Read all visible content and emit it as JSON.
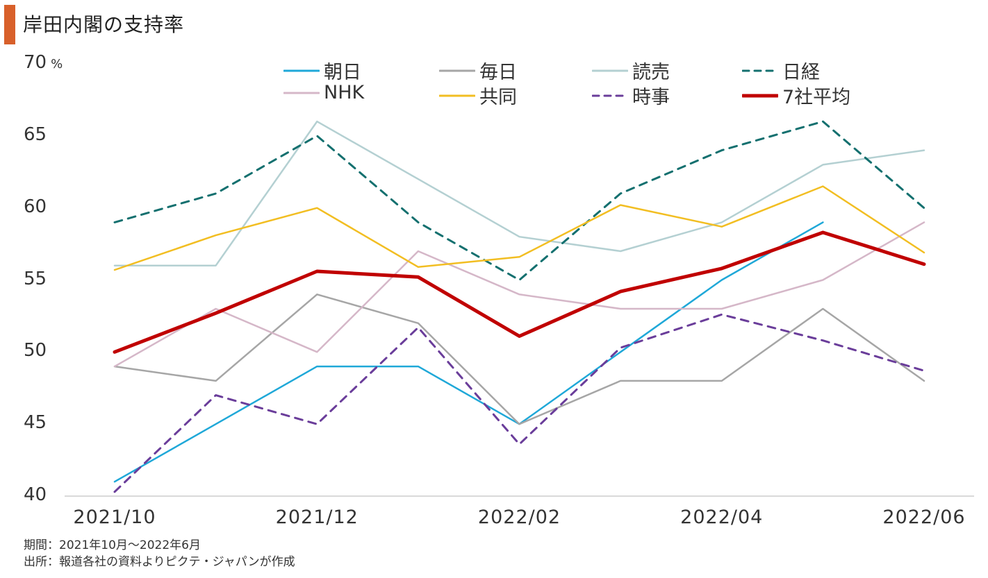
{
  "header": {
    "title": "岸田内閣の支持率"
  },
  "footnotes": {
    "period": "期間：2021年10月～2022年6月",
    "source": "出所：報道各社の資料よりピクテ・ジャパンが作成"
  },
  "chart_data": {
    "type": "line",
    "title": "岸田内閣の支持率",
    "xlabel": "",
    "ylabel": "%",
    "y_unit": "%",
    "ylim": [
      40,
      70
    ],
    "yticks": [
      "40",
      "45",
      "50",
      "55",
      "60",
      "65",
      "70"
    ],
    "grid": false,
    "legend_position": "top",
    "x": [
      "2021/10",
      "2021/11",
      "2021/12",
      "2022/01",
      "2022/02",
      "2022/03",
      "2022/04",
      "2022/05",
      "2022/06"
    ],
    "xtick_labels": [
      "2021/10",
      "2021/12",
      "2022/02",
      "2022/04",
      "2022/06"
    ],
    "series": [
      {
        "name": "朝日",
        "color": "#1FA8D8",
        "dash": false,
        "bold": false,
        "values": [
          41,
          45,
          49,
          49,
          45,
          50,
          55,
          59,
          null
        ]
      },
      {
        "name": "毎日",
        "color": "#A6A6A6",
        "dash": false,
        "bold": false,
        "values": [
          49,
          48,
          54,
          52,
          45,
          48,
          48,
          53,
          48
        ]
      },
      {
        "name": "読売",
        "color": "#B4D0D2",
        "dash": false,
        "bold": false,
        "values": [
          56,
          56,
          66,
          62,
          58,
          57,
          59,
          63,
          64
        ]
      },
      {
        "name": "日経",
        "color": "#14706F",
        "dash": true,
        "bold": false,
        "values": [
          59,
          61,
          65,
          59,
          55,
          61,
          64,
          66,
          60
        ]
      },
      {
        "name": "NHK",
        "color": "#D5B7C8",
        "dash": false,
        "bold": false,
        "values": [
          49,
          53,
          50,
          57,
          54,
          53,
          53,
          55,
          59
        ]
      },
      {
        "name": "共同",
        "color": "#F2BE22",
        "dash": false,
        "bold": false,
        "values": [
          55.7,
          58.1,
          60.0,
          55.9,
          56.6,
          60.2,
          58.7,
          61.5,
          56.9
        ]
      },
      {
        "name": "時事",
        "color": "#6A3D9A",
        "dash": true,
        "bold": false,
        "values": [
          40.3,
          47.0,
          45.0,
          51.7,
          43.6,
          50.3,
          52.6,
          50.8,
          48.7
        ]
      },
      {
        "name": "7社平均",
        "color": "#C00000",
        "dash": false,
        "bold": true,
        "values": [
          50.0,
          52.7,
          55.6,
          55.2,
          51.1,
          54.2,
          55.8,
          58.3,
          56.1
        ]
      }
    ]
  }
}
